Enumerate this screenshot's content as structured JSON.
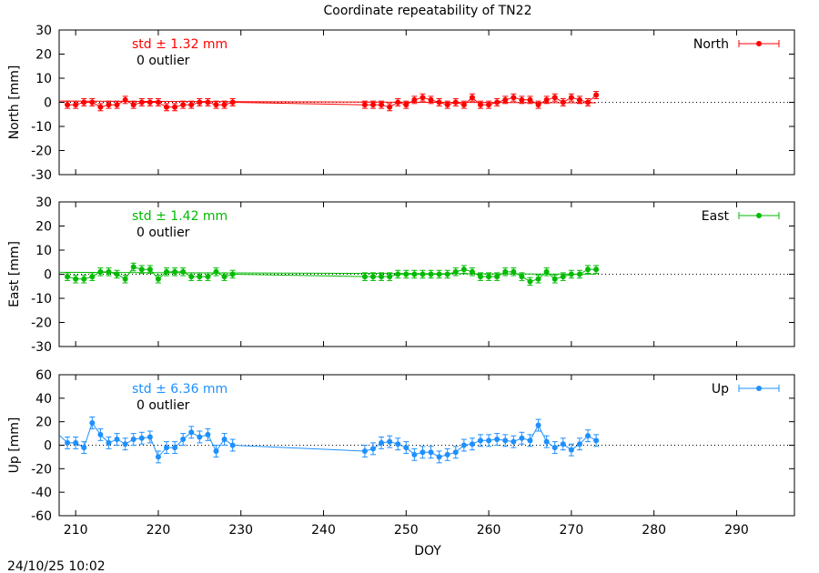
{
  "title": "Coordinate repeatability of TN22",
  "xlabel": "DOY",
  "footer": "24/10/25 10:02",
  "outlier_text": "0 outlier",
  "xaxis": {
    "range": [
      208,
      297
    ],
    "ticks": [
      210,
      220,
      230,
      240,
      250,
      260,
      270,
      280,
      290
    ]
  },
  "chart_data": [
    {
      "type": "line",
      "name": "North",
      "legend": "North",
      "ylabel": "North [mm]",
      "std_text": "std ± 1.32 mm",
      "color": "#ff0000",
      "ylim": [
        -30,
        30
      ],
      "yticks": [
        30,
        20,
        10,
        0,
        -10,
        -20,
        -30
      ],
      "error": 1.5,
      "x": [
        209,
        210,
        211,
        212,
        213,
        214,
        215,
        216,
        217,
        218,
        219,
        220,
        221,
        222,
        223,
        224,
        225,
        226,
        227,
        228,
        229,
        245,
        246,
        247,
        248,
        249,
        250,
        251,
        252,
        253,
        254,
        255,
        256,
        257,
        258,
        259,
        260,
        261,
        262,
        263,
        264,
        265,
        266,
        267,
        268,
        269,
        270,
        271,
        272,
        273
      ],
      "y": [
        -1,
        -1,
        0,
        0,
        -2,
        -1,
        -1,
        1,
        -1,
        0,
        0,
        0,
        -2,
        -2,
        -1,
        -1,
        0,
        0,
        -1,
        -1,
        0,
        -1,
        -1,
        -1,
        -2,
        0,
        -1,
        1,
        2,
        1,
        0,
        -1,
        0,
        -1,
        2,
        -1,
        -1,
        0,
        1,
        2,
        1,
        1,
        -1,
        1,
        2,
        0,
        2,
        1,
        0,
        3
      ],
      "trend": [
        [
          208,
          0.5
        ],
        [
          273,
          -0.2
        ]
      ]
    },
    {
      "type": "line",
      "name": "East",
      "legend": "East",
      "ylabel": "East [mm]",
      "std_text": "std ± 1.42 mm",
      "color": "#00bb00",
      "ylim": [
        -30,
        30
      ],
      "yticks": [
        30,
        20,
        10,
        0,
        -10,
        -20,
        -30
      ],
      "error": 1.6,
      "x": [
        209,
        210,
        211,
        212,
        213,
        214,
        215,
        216,
        217,
        218,
        219,
        220,
        221,
        222,
        223,
        224,
        225,
        226,
        227,
        228,
        229,
        245,
        246,
        247,
        248,
        249,
        250,
        251,
        252,
        253,
        254,
        255,
        256,
        257,
        258,
        259,
        260,
        261,
        262,
        263,
        264,
        265,
        266,
        267,
        268,
        269,
        270,
        271,
        272,
        273
      ],
      "y": [
        -1,
        -2,
        -2,
        -1,
        1,
        1,
        0,
        -2,
        3,
        2,
        2,
        -2,
        1,
        1,
        1,
        -1,
        -1,
        -1,
        1,
        -1,
        0,
        -1,
        -1,
        -1,
        -1,
        0,
        0,
        0,
        0,
        0,
        0,
        0,
        1,
        2,
        1,
        -1,
        -1,
        -1,
        1,
        1,
        -1,
        -3,
        -2,
        1,
        -2,
        -1,
        0,
        0,
        2,
        2
      ],
      "trend": [
        [
          208,
          0.8
        ],
        [
          273,
          0.0
        ]
      ]
    },
    {
      "type": "line",
      "name": "Up",
      "legend": "Up",
      "ylabel": "Up [mm]",
      "std_text": "std ± 6.36 mm",
      "color": "#1e90ff",
      "ylim": [
        -60,
        60
      ],
      "yticks": [
        60,
        40,
        20,
        0,
        -20,
        -40,
        -60
      ],
      "error": 5,
      "x": [
        209,
        210,
        211,
        212,
        213,
        214,
        215,
        216,
        217,
        218,
        219,
        220,
        221,
        222,
        223,
        224,
        225,
        226,
        227,
        228,
        229,
        245,
        246,
        247,
        248,
        249,
        250,
        251,
        252,
        253,
        254,
        255,
        256,
        257,
        258,
        259,
        260,
        261,
        262,
        263,
        264,
        265,
        266,
        267,
        268,
        269,
        270,
        271,
        272,
        273
      ],
      "y": [
        2,
        2,
        -2,
        19,
        9,
        2,
        5,
        1,
        5,
        6,
        7,
        -10,
        -2,
        -2,
        5,
        11,
        7,
        9,
        -5,
        5,
        0,
        -5,
        -3,
        2,
        3,
        1,
        -2,
        -8,
        -6,
        -6,
        -10,
        -8,
        -6,
        0,
        1,
        4,
        4,
        5,
        4,
        3,
        6,
        4,
        17,
        3,
        -2,
        1,
        -4,
        1,
        8,
        4
      ]
    }
  ]
}
